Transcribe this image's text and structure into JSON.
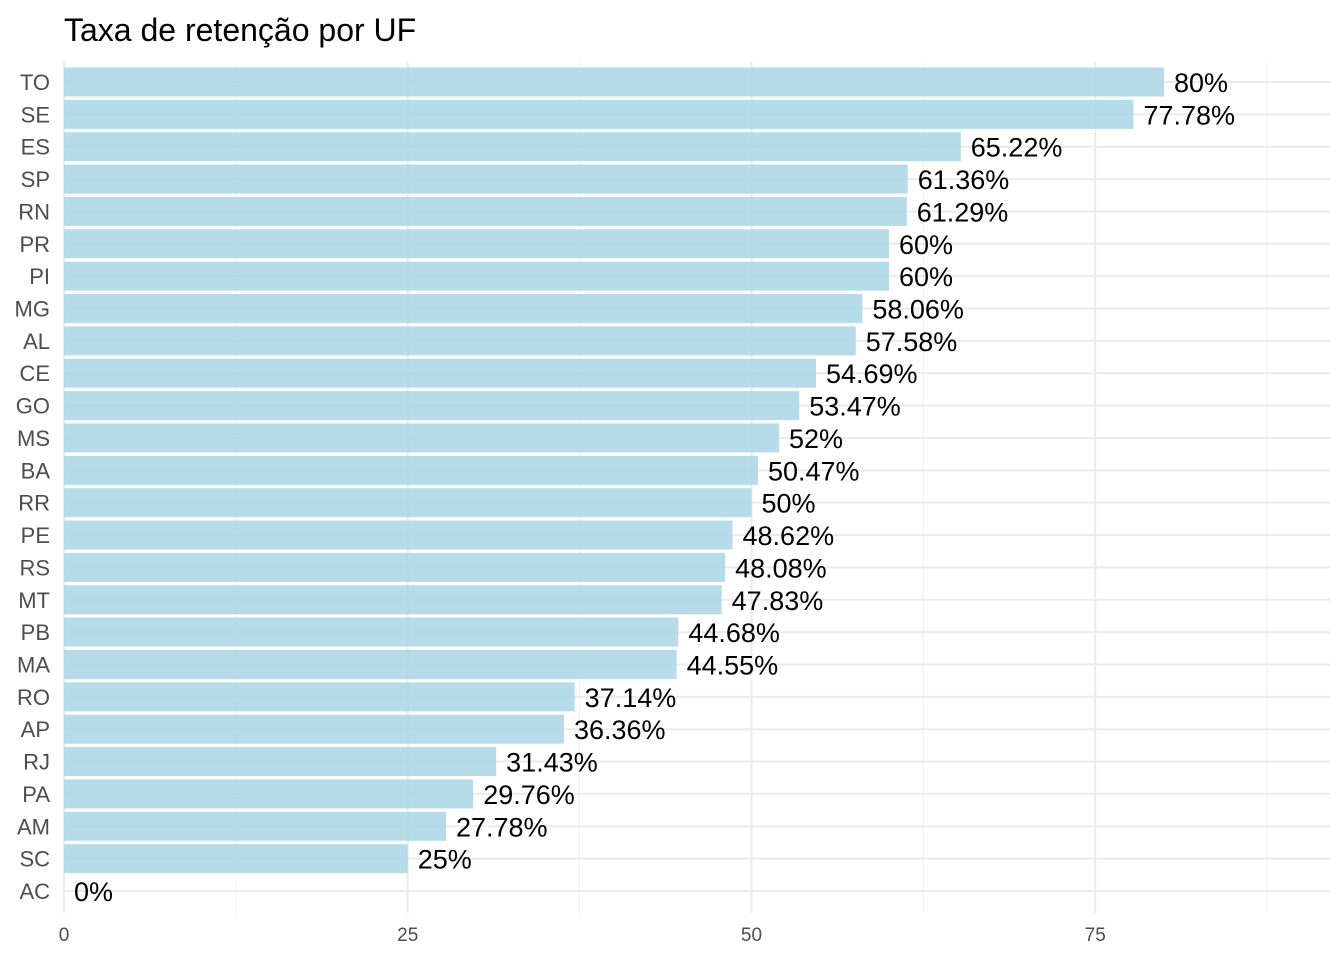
{
  "chart_data": {
    "type": "bar",
    "orientation": "horizontal",
    "title": "Taxa de retenção por UF",
    "xlabel": "",
    "ylabel": "",
    "xlim": [
      0,
      90
    ],
    "x_ticks": [
      0,
      25,
      50,
      75
    ],
    "grid": true,
    "legend": "none",
    "bar_color": "#add8e6",
    "categories": [
      "TO",
      "SE",
      "ES",
      "SP",
      "RN",
      "PR",
      "PI",
      "MG",
      "AL",
      "CE",
      "GO",
      "MS",
      "BA",
      "RR",
      "PE",
      "RS",
      "MT",
      "PB",
      "MA",
      "RO",
      "AP",
      "RJ",
      "PA",
      "AM",
      "SC",
      "AC"
    ],
    "values": [
      80,
      77.78,
      65.22,
      61.36,
      61.29,
      60,
      60,
      58.06,
      57.58,
      54.69,
      53.47,
      52,
      50.47,
      50,
      48.62,
      48.08,
      47.83,
      44.68,
      44.55,
      37.14,
      36.36,
      31.43,
      29.76,
      27.78,
      25,
      0
    ],
    "labels": [
      "80%",
      "77.78%",
      "65.22%",
      "61.36%",
      "61.29%",
      "60%",
      "60%",
      "58.06%",
      "57.58%",
      "54.69%",
      "53.47%",
      "52%",
      "50.47%",
      "50%",
      "48.62%",
      "48.08%",
      "47.83%",
      "44.68%",
      "44.55%",
      "37.14%",
      "36.36%",
      "31.43%",
      "29.76%",
      "27.78%",
      "25%",
      "0%"
    ]
  }
}
